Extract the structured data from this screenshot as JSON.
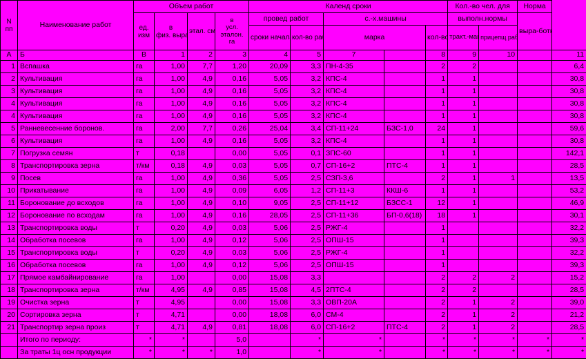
{
  "bg": "#ff00ff",
  "border": "#000000",
  "text": "#000000",
  "cols": {
    "c0": 25,
    "c1": 168,
    "c2": 30,
    "c3": 48,
    "c4": 40,
    "c5": 49,
    "c6": 60,
    "c7": 48,
    "c8": 88,
    "c9": 60,
    "c10": 32,
    "c11": 45,
    "c12": 56,
    "c13": 50,
    "c14": 50
  },
  "h": {
    "obem": "Объем работ",
    "kalend": "Календ сроки",
    "kolchel": "Кол.-во чел. для",
    "norma": "Норма",
    "np": "N пп",
    "naim": "Наименование работ",
    "ed": "ед. изм",
    "fiz": "в физ. выраж",
    "etal": "этал. смен. выра-ботка",
    "usl": "в усл. эталон. га",
    "proved": "провед работ",
    "sxm": "с.-х.машины",
    "vypoln": "выполн.нормы",
    "vyra": "выра-ботки",
    "sroki": "сроки начала работ",
    "kolrab": "кол-во рабоч. дней",
    "marka": "марка",
    "kol": "кол-во",
    "trakt": "тракт.-машин.",
    "pricep": "прицепщ рабоч.на ручн. раб.",
    "A": "А",
    "B": "Б",
    "V": "В",
    "c1": "1",
    "c2": "2",
    "c3": "3",
    "c4": "4",
    "c5": "5",
    "c7": "7",
    "c8": "8",
    "c9": "9",
    "c10": "10",
    "c11": "11"
  },
  "rows": [
    [
      "1",
      "Вспашка",
      "га",
      "1,00",
      "7,7",
      "1,20",
      "20,09",
      "3,3",
      "ПН-4-35",
      "",
      "2",
      "2",
      "",
      "",
      "6,4"
    ],
    [
      "2",
      "Культивация",
      "га",
      "1,00",
      "4,9",
      "0,16",
      "5,05",
      "3,2",
      "КПС-4",
      "",
      "1",
      "1",
      "",
      "",
      "30,8"
    ],
    [
      "3",
      "Культивация",
      "га",
      "1,00",
      "4,9",
      "0,16",
      "5,05",
      "3,2",
      "КПС-4",
      "",
      "1",
      "1",
      "",
      "",
      "30,8"
    ],
    [
      "4",
      "Культивация",
      "га",
      "1,00",
      "4,9",
      "0,16",
      "5,05",
      "3,2",
      "КПС-4",
      "",
      "1",
      "1",
      "",
      "",
      "30,8"
    ],
    [
      "4",
      "Культивация",
      "га",
      "1,00",
      "4,9",
      "0,16",
      "5,05",
      "3,2",
      "КПС-4",
      "",
      "1",
      "1",
      "",
      "",
      "30,8"
    ],
    [
      "5",
      "Ранневесенние боронов.",
      "га",
      "2,00",
      "7,7",
      "0,26",
      "25,04",
      "3,4",
      "СП-11+24",
      "БЗС-1,0",
      "24",
      "1",
      "",
      "",
      "59,6"
    ],
    [
      "6",
      "Культивация",
      "га",
      "1,00",
      "4,9",
      "0,16",
      "5,05",
      "3,2",
      "КПС-4",
      "",
      "1",
      "1",
      "",
      "",
      "30,8"
    ],
    [
      "7",
      "Погрузка семян",
      "т",
      "0,18",
      "",
      "0,00",
      "5,05",
      "0,1",
      "ЗПС-60",
      "",
      "1",
      "1",
      "",
      "",
      "142,1"
    ],
    [
      "8",
      "Транспортировка зерна",
      "т/км",
      "0,18",
      "4,9",
      "0,03",
      "5,05",
      "0,7",
      "СП-16+2",
      "ПТС-4",
      "1",
      "1",
      "",
      "",
      "28,5"
    ],
    [
      "9",
      "Посев",
      "га",
      "1,00",
      "4,9",
      "0,36",
      "5,05",
      "2,5",
      "СЗП-3,6",
      "",
      "2",
      "1",
      "1",
      "",
      "13,5"
    ],
    [
      "10",
      "Прикатывание",
      "га",
      "1,00",
      "4,9",
      "0,09",
      "6,05",
      "1,2",
      "СП-11+3",
      "ККШ-6",
      "1",
      "1",
      "",
      "",
      "53,2"
    ],
    [
      "11",
      "Боронование до всходов",
      "га",
      "1,00",
      "4,9",
      "0,10",
      "9,05",
      "2,5",
      "СП-11+12",
      "БЗСС-1",
      "12",
      "1",
      "",
      "",
      "46,9"
    ],
    [
      "12",
      "Боронование по всходам",
      "га",
      "1,00",
      "4,9",
      "0,16",
      "28,05",
      "2,5",
      "СП-11+36",
      "БП-0,6(18)",
      "18",
      "1",
      "",
      "",
      "30,1"
    ],
    [
      "13",
      "Транспортировка воды",
      "т",
      "0,20",
      "4,9",
      "0,03",
      "5,06",
      "2,5",
      "РЖГ-4",
      "",
      "1",
      "",
      "",
      "",
      "32,2"
    ],
    [
      "14",
      "Обработка посевов",
      "га",
      "1,00",
      "4,9",
      "0,12",
      "5,06",
      "2,5",
      "ОПШ-15",
      "",
      "1",
      "",
      "",
      "",
      "39,3"
    ],
    [
      "15",
      "Транспортировка воды",
      "т",
      "0,20",
      "4,9",
      "0,03",
      "5,06",
      "2,5",
      "РЖГ-4",
      "",
      "1",
      "",
      "",
      "",
      "32,2"
    ],
    [
      "16",
      "Обработка посевов",
      "га",
      "1,00",
      "4,9",
      "0,12",
      "5,06",
      "2,5",
      "ОПШ-15",
      "",
      "1",
      "",
      "",
      "",
      "39,3"
    ],
    [
      "17",
      "Прямое камбайнирование",
      "га",
      "1,00",
      "",
      "0,00",
      "15,08",
      "3,3",
      "",
      "",
      "2",
      "2",
      "2",
      "",
      "15,2"
    ],
    [
      "18",
      "Транспортировка зерна",
      "т/км",
      "4,95",
      "4,9",
      "0,85",
      "15,08",
      "4,5",
      "2ПТС-4",
      "",
      "2",
      "2",
      "",
      "",
      "28,5"
    ],
    [
      "19",
      "Очистка зерна",
      "т",
      "4,95",
      "",
      "0,00",
      "15,08",
      "3,3",
      "ОВП-20А",
      "",
      "2",
      "1",
      "2",
      "",
      "39,0"
    ],
    [
      "20",
      "Сортировка зерна",
      "т",
      "4,71",
      "",
      "0,00",
      "18,08",
      "6,0",
      "СМ-4",
      "",
      "2",
      "1",
      "2",
      "",
      "21,2"
    ],
    [
      "21",
      "Транспортир зерна произ",
      "т",
      "4,71",
      "4,9",
      "0,81",
      "18,08",
      "6,0",
      "СП-16+2",
      "ПТС-4",
      "2",
      "1",
      "2",
      "",
      "28,5"
    ]
  ],
  "footer": [
    [
      "",
      "Итого по периоду:",
      "*",
      "*",
      "",
      "5,0",
      "",
      "*",
      "*",
      "",
      "*",
      "*",
      "*",
      "*",
      "*"
    ],
    [
      "",
      "За траты 1ц осн продукции",
      "*",
      "*",
      "*",
      "1,0",
      "",
      "*",
      "*",
      "",
      "*",
      "*",
      "*",
      "*",
      "*"
    ]
  ]
}
